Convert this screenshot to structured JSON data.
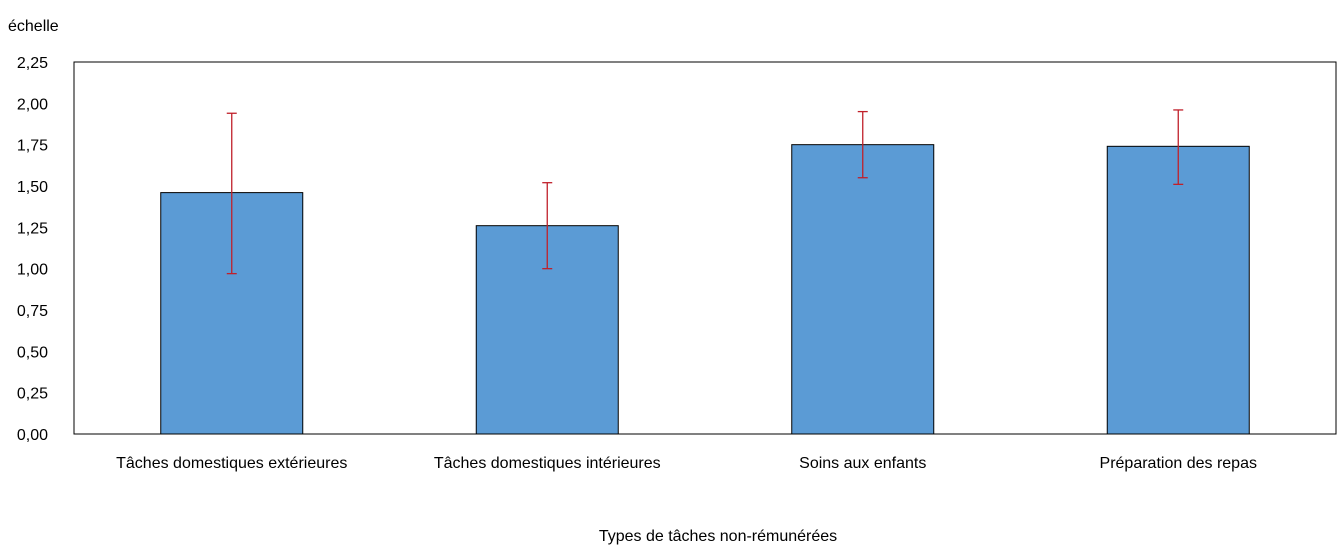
{
  "chart_data": {
    "type": "bar",
    "ylabel": "échelle",
    "xlabel": "Types de tâches non-rémunérées",
    "categories": [
      "Tâches domestiques extérieures",
      "Tâches domestiques intérieures",
      "Soins aux enfants",
      "Préparation des repas"
    ],
    "values": [
      1.46,
      1.26,
      1.75,
      1.74
    ],
    "error_low": [
      0.97,
      1.0,
      1.55,
      1.51
    ],
    "error_high": [
      1.94,
      1.52,
      1.95,
      1.96
    ],
    "ylim": [
      0,
      2.25
    ],
    "yticks": [
      "0,00",
      "0,25",
      "0,50",
      "0,75",
      "1,00",
      "1,25",
      "1,50",
      "1,75",
      "2,00",
      "2,25"
    ],
    "grid": false,
    "bar_color": "#5b9bd5",
    "bar_edge_color": "#000000",
    "error_color": "#c0202a"
  }
}
